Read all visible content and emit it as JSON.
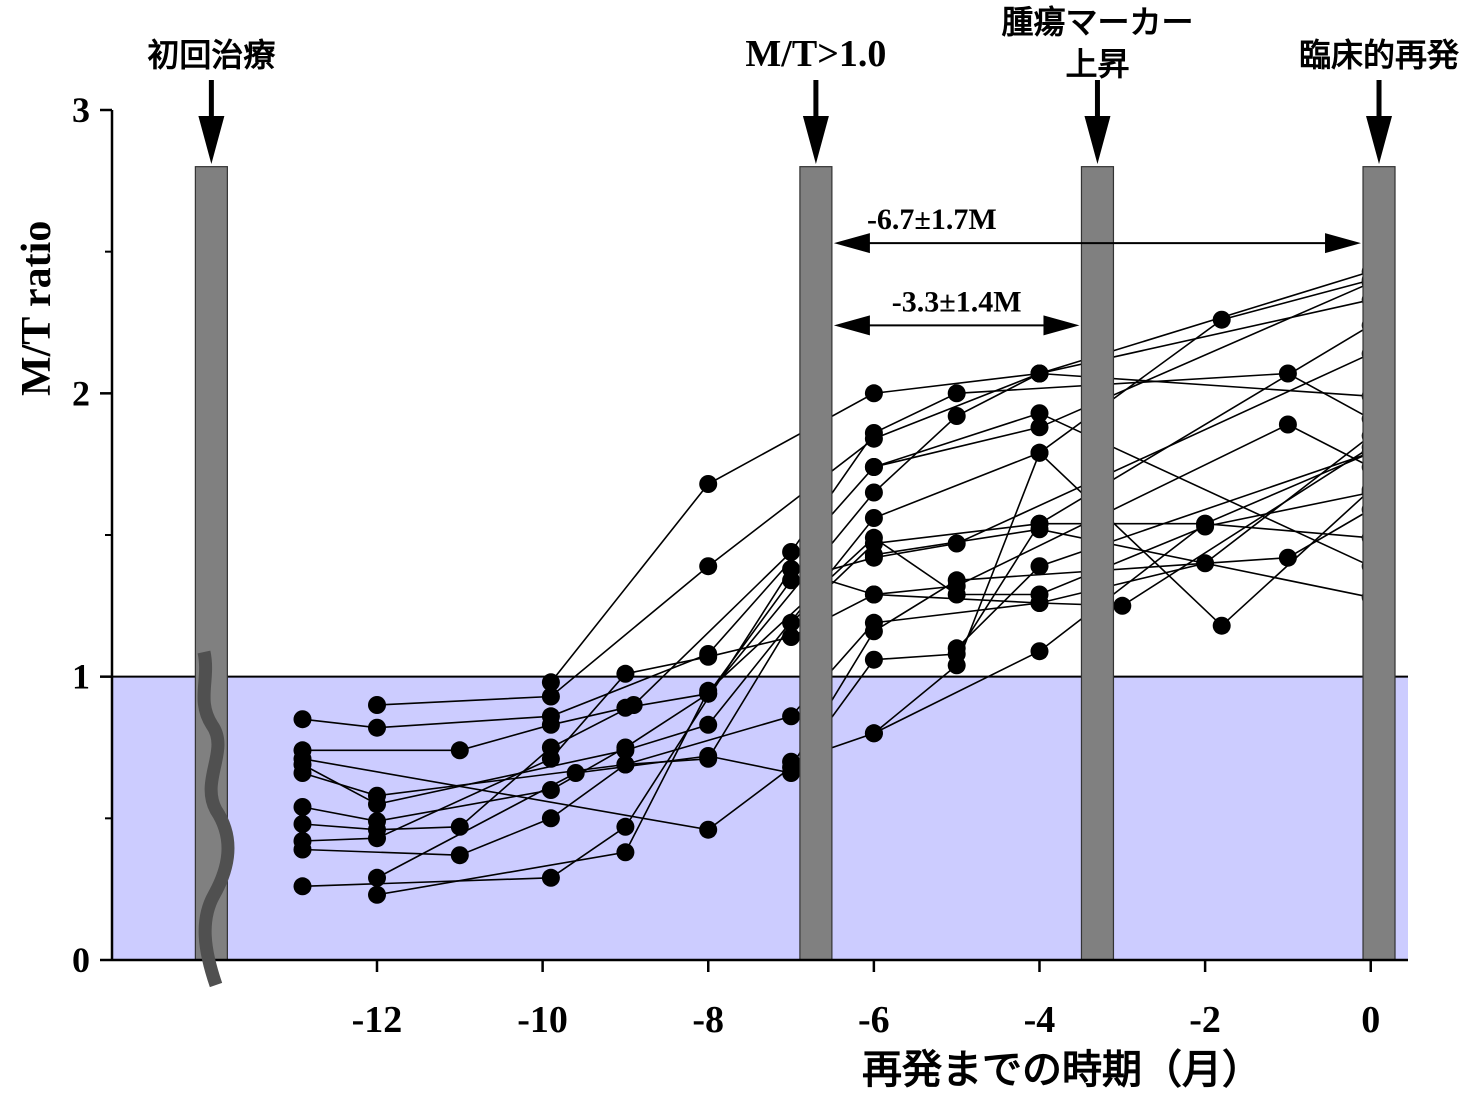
{
  "chart_data": {
    "type": "line",
    "xlabel": "再発までの時期（月）",
    "ylabel": "M/T ratio",
    "xlim": [
      -15.2,
      0.45
    ],
    "ylim": [
      0,
      3
    ],
    "x_ticks": [
      {
        "value": -12,
        "label": "-12"
      },
      {
        "value": -10,
        "label": "-10"
      },
      {
        "value": -8,
        "label": "-8"
      },
      {
        "value": -6,
        "label": "-6"
      },
      {
        "value": -4,
        "label": "-4"
      },
      {
        "value": -2,
        "label": "-2"
      },
      {
        "value": 0,
        "label": "0"
      }
    ],
    "y_ticks": [
      {
        "value": 0,
        "label": "0"
      },
      {
        "value": 1,
        "label": "1"
      },
      {
        "value": 2,
        "label": "2"
      },
      {
        "value": 3,
        "label": "3"
      }
    ],
    "y_minor_ticks": [
      0.5,
      1.5,
      2.5
    ],
    "threshold": 1.0,
    "colors": {
      "below_threshold_fill": "#ccccff",
      "event_bar": "#808080",
      "marker": "#000000",
      "axis_break": "#505050"
    },
    "events": [
      {
        "x": -14.0,
        "label_lines": [
          "初回治療"
        ],
        "font": "sans"
      },
      {
        "x": -6.7,
        "label_lines": [
          "M/T>1.0"
        ],
        "font": "serif"
      },
      {
        "x": -3.3,
        "label_lines": [
          "腫瘍マーカー",
          "上昇"
        ],
        "font": "sans"
      },
      {
        "x": 0.1,
        "label_lines": [
          "臨床的再発"
        ],
        "font": "sans"
      }
    ],
    "annotations": [
      {
        "text": "-6.7±1.7M",
        "from": -6.7,
        "to": 0.1,
        "y": 2.53
      },
      {
        "text": "-3.3±1.4M",
        "from": -6.7,
        "to": -3.3,
        "y": 2.24
      }
    ],
    "series": [
      {
        "points": [
          [
            -9.9,
            0.98
          ],
          [
            -8,
            1.68
          ],
          [
            -6,
            2.0
          ],
          [
            -4,
            2.07
          ],
          [
            0,
            1.99
          ]
        ]
      },
      {
        "points": [
          [
            -12,
            0.9
          ],
          [
            -9.9,
            0.93
          ],
          [
            -8,
            1.39
          ],
          [
            -6,
            1.84
          ],
          [
            -4,
            2.07
          ],
          [
            0,
            2.43
          ]
        ]
      },
      {
        "points": [
          [
            -12.9,
            0.85
          ],
          [
            -12,
            0.82
          ],
          [
            -9.9,
            0.86
          ],
          [
            -8,
            1.08
          ],
          [
            -6,
            1.74
          ],
          [
            -4,
            1.88
          ],
          [
            0,
            2.39
          ]
        ]
      },
      {
        "points": [
          [
            -12.9,
            0.74
          ],
          [
            -11,
            0.74
          ],
          [
            -9.9,
            0.83
          ],
          [
            -9,
            0.89
          ],
          [
            -8,
            0.94
          ],
          [
            -6,
            1.65
          ],
          [
            -5,
            1.92
          ],
          [
            -4,
            2.07
          ],
          [
            0,
            2.33
          ]
        ]
      },
      {
        "points": [
          [
            -12.9,
            0.69
          ],
          [
            -12,
            0.55
          ],
          [
            -9,
            0.74
          ],
          [
            -8,
            0.83
          ],
          [
            -6,
            1.56
          ],
          [
            -4,
            1.79
          ],
          [
            -1.8,
            2.26
          ],
          [
            0,
            2.4
          ]
        ]
      },
      {
        "points": [
          [
            -12.9,
            0.66
          ],
          [
            -12,
            0.58
          ],
          [
            -9,
            0.69
          ],
          [
            -8,
            0.71
          ],
          [
            -7,
            1.19
          ],
          [
            -6,
            1.47
          ],
          [
            -4,
            1.54
          ],
          [
            0,
            2.24
          ]
        ]
      },
      {
        "points": [
          [
            -12.9,
            0.54
          ],
          [
            -12,
            0.49
          ],
          [
            -9.9,
            0.6
          ],
          [
            -9,
            0.75
          ],
          [
            -8,
            0.94
          ],
          [
            -7,
            1.34
          ],
          [
            -6,
            1.42
          ],
          [
            -5,
            1.47
          ],
          [
            0,
            2.14
          ]
        ]
      },
      {
        "points": [
          [
            -12.9,
            0.48
          ],
          [
            -12,
            0.46
          ],
          [
            -11,
            0.47
          ],
          [
            -9.9,
            0.75
          ],
          [
            -8.9,
            0.9
          ],
          [
            -7,
            1.44
          ],
          [
            -6,
            1.86
          ],
          [
            -5,
            2.0
          ],
          [
            -1,
            2.07
          ],
          [
            0,
            1.91
          ]
        ]
      },
      {
        "points": [
          [
            -12.9,
            0.42
          ],
          [
            -12,
            0.43
          ],
          [
            -9.9,
            0.71
          ],
          [
            -9,
            1.01
          ],
          [
            -8,
            1.07
          ],
          [
            -7,
            1.14
          ],
          [
            -6,
            1.29
          ],
          [
            -4,
            1.26
          ],
          [
            -2,
            1.4
          ],
          [
            0,
            1.85
          ]
        ]
      },
      {
        "points": [
          [
            -12.9,
            0.39
          ],
          [
            -11,
            0.37
          ],
          [
            -9.9,
            0.5
          ],
          [
            -9,
            0.69
          ],
          [
            -7,
            0.86
          ],
          [
            -6,
            1.19
          ],
          [
            -4,
            1.26
          ],
          [
            -3,
            1.25
          ],
          [
            0,
            1.81
          ]
        ]
      },
      {
        "points": [
          [
            -12.9,
            0.26
          ],
          [
            -9.9,
            0.29
          ],
          [
            -9,
            0.47
          ],
          [
            -7,
            1.38
          ],
          [
            -6,
            1.29
          ],
          [
            -5,
            1.32
          ],
          [
            -1,
            1.89
          ],
          [
            0,
            1.74
          ]
        ]
      },
      {
        "points": [
          [
            -12,
            0.29
          ],
          [
            -9.6,
            0.66
          ],
          [
            -8,
            0.72
          ],
          [
            -7,
            0.66
          ],
          [
            -6,
            1.06
          ],
          [
            -5,
            1.08
          ],
          [
            -4,
            1.54
          ],
          [
            -2,
            1.54
          ],
          [
            0,
            1.79
          ]
        ]
      },
      {
        "points": [
          [
            -12,
            0.23
          ],
          [
            -9,
            0.38
          ],
          [
            -8,
            0.95
          ],
          [
            -6,
            1.49
          ],
          [
            -5,
            1.29
          ],
          [
            -4,
            1.29
          ],
          [
            -2,
            1.53
          ],
          [
            0,
            1.65
          ]
        ]
      },
      {
        "points": [
          [
            -12.9,
            0.71
          ],
          [
            -8,
            0.46
          ],
          [
            -7,
            0.68
          ],
          [
            -6,
            1.16
          ],
          [
            -5,
            1.34
          ],
          [
            -1,
            1.42
          ],
          [
            0,
            1.59
          ]
        ]
      },
      {
        "points": [
          [
            -7,
            0.7
          ],
          [
            -6,
            0.8
          ],
          [
            -5,
            1.04
          ],
          [
            -4,
            1.79
          ],
          [
            -1.8,
            1.18
          ],
          [
            0,
            1.66
          ]
        ]
      },
      {
        "points": [
          [
            -6,
            0.8
          ],
          [
            -4,
            1.09
          ],
          [
            -2,
            1.54
          ],
          [
            0,
            1.49
          ]
        ]
      },
      {
        "points": [
          [
            -6,
            1.74
          ],
          [
            -4,
            1.93
          ],
          [
            0,
            1.39
          ]
        ]
      },
      {
        "points": [
          [
            -6,
            1.43
          ],
          [
            -4,
            1.52
          ],
          [
            0,
            1.28
          ]
        ]
      },
      {
        "points": [
          [
            -5,
            1.1
          ],
          [
            -4,
            1.39
          ],
          [
            0,
            1.79
          ]
        ]
      }
    ]
  }
}
